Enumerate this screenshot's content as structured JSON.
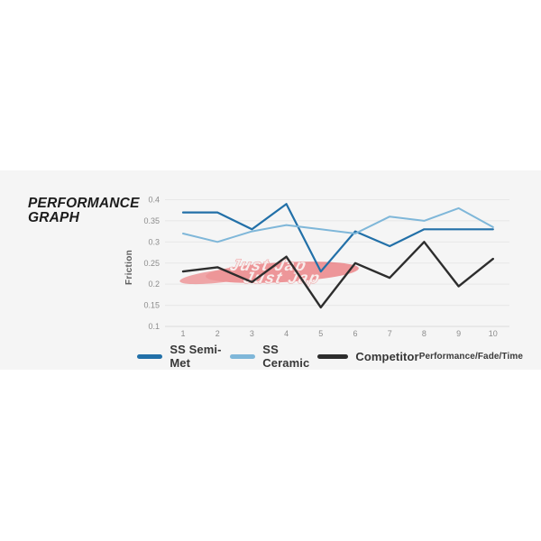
{
  "page": {
    "background": "#ffffff",
    "panel_background": "#f5f5f5"
  },
  "header": {
    "title_line1": "PERFORMANCE",
    "title_line2": "GRAPH"
  },
  "chart_data": {
    "type": "line",
    "title": "Performance Graph",
    "ylabel": "Friction",
    "xlabel": "",
    "categories": [
      1,
      2,
      3,
      4,
      5,
      6,
      7,
      8,
      9,
      10
    ],
    "y_ticks": [
      0.4,
      0.35,
      0.3,
      0.25,
      0.2,
      0.15,
      0.1
    ],
    "ylim": [
      0.1,
      0.4
    ],
    "grid": true,
    "gridline_color": "#e7e7e7",
    "legend_position": "bottom",
    "series": [
      {
        "name": "SS Semi-Met",
        "color": "#2270a8",
        "stroke_width": 2.2,
        "values": [
          0.37,
          0.37,
          0.33,
          0.39,
          0.23,
          0.325,
          0.29,
          0.33,
          0.33,
          0.33
        ]
      },
      {
        "name": "SS Ceramic",
        "color": "#7fb7d9",
        "stroke_width": 2,
        "values": [
          0.32,
          0.3,
          0.325,
          0.34,
          0.33,
          0.32,
          0.36,
          0.35,
          0.38,
          0.335
        ]
      },
      {
        "name": "Competitor",
        "color": "#2d2d2d",
        "stroke_width": 2.4,
        "values": [
          0.23,
          0.24,
          0.205,
          0.265,
          0.145,
          0.25,
          0.215,
          0.3,
          0.195,
          0.26
        ]
      }
    ],
    "footnote": "Performance/Fade/Time"
  },
  "watermark": {
    "line1": "Just Jap",
    "line2": "Just Jap",
    "color": "#e8494e"
  }
}
